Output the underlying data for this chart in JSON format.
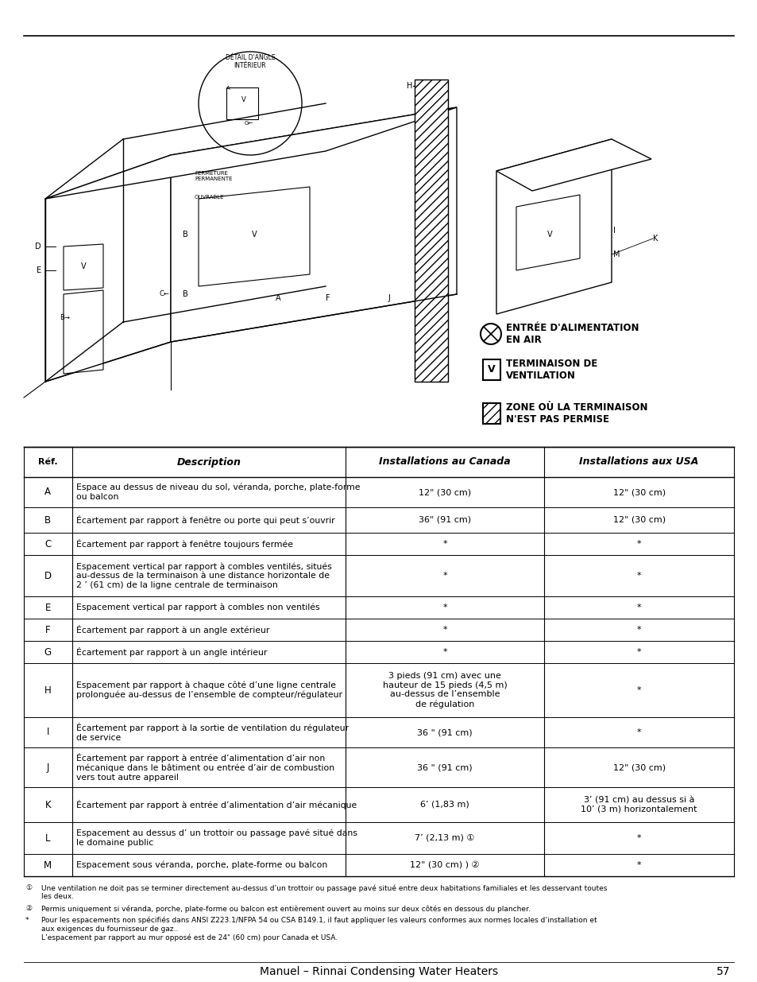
{
  "page_title": "Manuel – Rinnai Condensing Water Heaters",
  "page_number": "57",
  "table_headers": [
    "Réf.",
    "Description",
    "Installations au Canada",
    "Installations aux USA"
  ],
  "table_rows": [
    {
      "ref": "A",
      "desc": "Espace au dessus de niveau du sol, véranda, porche, plate-forme\nou balcon",
      "canada": "12\" (30 cm)",
      "usa": "12\" (30 cm)"
    },
    {
      "ref": "B",
      "desc": "Écartement par rapport à fenêtre ou porte qui peut s’ouvrir",
      "canada": "36\" (91 cm)",
      "usa": "12\" (30 cm)"
    },
    {
      "ref": "C",
      "desc": "Écartement par rapport à fenêtre toujours fermée",
      "canada": "*",
      "usa": "*"
    },
    {
      "ref": "D",
      "desc": "Espacement vertical par rapport à combles ventilés, situés\nau-dessus de la terminaison à une distance horizontale de\n2 ’ (61 cm) de la ligne centrale de terminaison",
      "canada": "*",
      "usa": "*"
    },
    {
      "ref": "E",
      "desc": "Espacement vertical par rapport à combles non ventilés",
      "canada": "*",
      "usa": "*"
    },
    {
      "ref": "F",
      "desc": "Écartement par rapport à un angle extérieur",
      "canada": "*",
      "usa": "*"
    },
    {
      "ref": "G",
      "desc": "Écartement par rapport à un angle intérieur",
      "canada": "*",
      "usa": "*"
    },
    {
      "ref": "H",
      "desc": "Espacement par rapport à chaque côté d’une ligne centrale\nprolonguée au-dessus de l’ensemble de compteur/régulateur",
      "canada": "3 pieds (91 cm) avec une\nhauteur de 15 pieds (4,5 m)\nau-dessus de l’ensemble\nde régulation",
      "usa": "*"
    },
    {
      "ref": "I",
      "desc": "Écartement par rapport à la sortie de ventilation du régulateur\nde service",
      "canada": "36 \" (91 cm)",
      "usa": "*"
    },
    {
      "ref": "J",
      "desc": "Écartement par rapport à entrée d’alimentation d’air non\nmécanique dans le bâtiment ou entrée d’air de combustion\nvers tout autre appareil",
      "canada": "36 \" (91 cm)",
      "usa": "12\" (30 cm)"
    },
    {
      "ref": "K",
      "desc": "Écartement par rapport à entrée d’alimentation d’air mécanique",
      "canada": "6’ (1,83 m)",
      "usa": "3’ (91 cm) au dessus si à\n10’ (3 m) horizontalement"
    },
    {
      "ref": "L",
      "desc": "Espacement au dessus d’ un trottoir ou passage pavé situé dans\nle domaine public",
      "canada": "7’ (2,13 m) ①",
      "usa": "*"
    },
    {
      "ref": "M",
      "desc": "Espacement sous véranda, porche, plate-forme ou balcon",
      "canada": "12\" (30 cm) ) ②",
      "usa": "*"
    }
  ],
  "footnotes": [
    [
      "①",
      "Une ventilation ne doit pas se terminer directement au-dessus d’un trottoir ou passage pavé situé entre deux habitations familiales et les desservant toutes\nles deux."
    ],
    [
      "②",
      "Permis uniquement si véranda, porche, plate-forme ou balcon est entièrement ouvert au moins sur deux côtés en dessous du plancher."
    ],
    [
      "*",
      "Pour les espacements non spécifiés dans ANSI Z223.1/NFPA 54 ou CSA B149.1, il faut appliquer les valeurs conformes aux normes locales d’installation et\naux exigences du fournisseur de gaz..\nL’espacement par rapport au mur opposé est de 24\" (60 cm) pour Canada et USA."
    ]
  ]
}
